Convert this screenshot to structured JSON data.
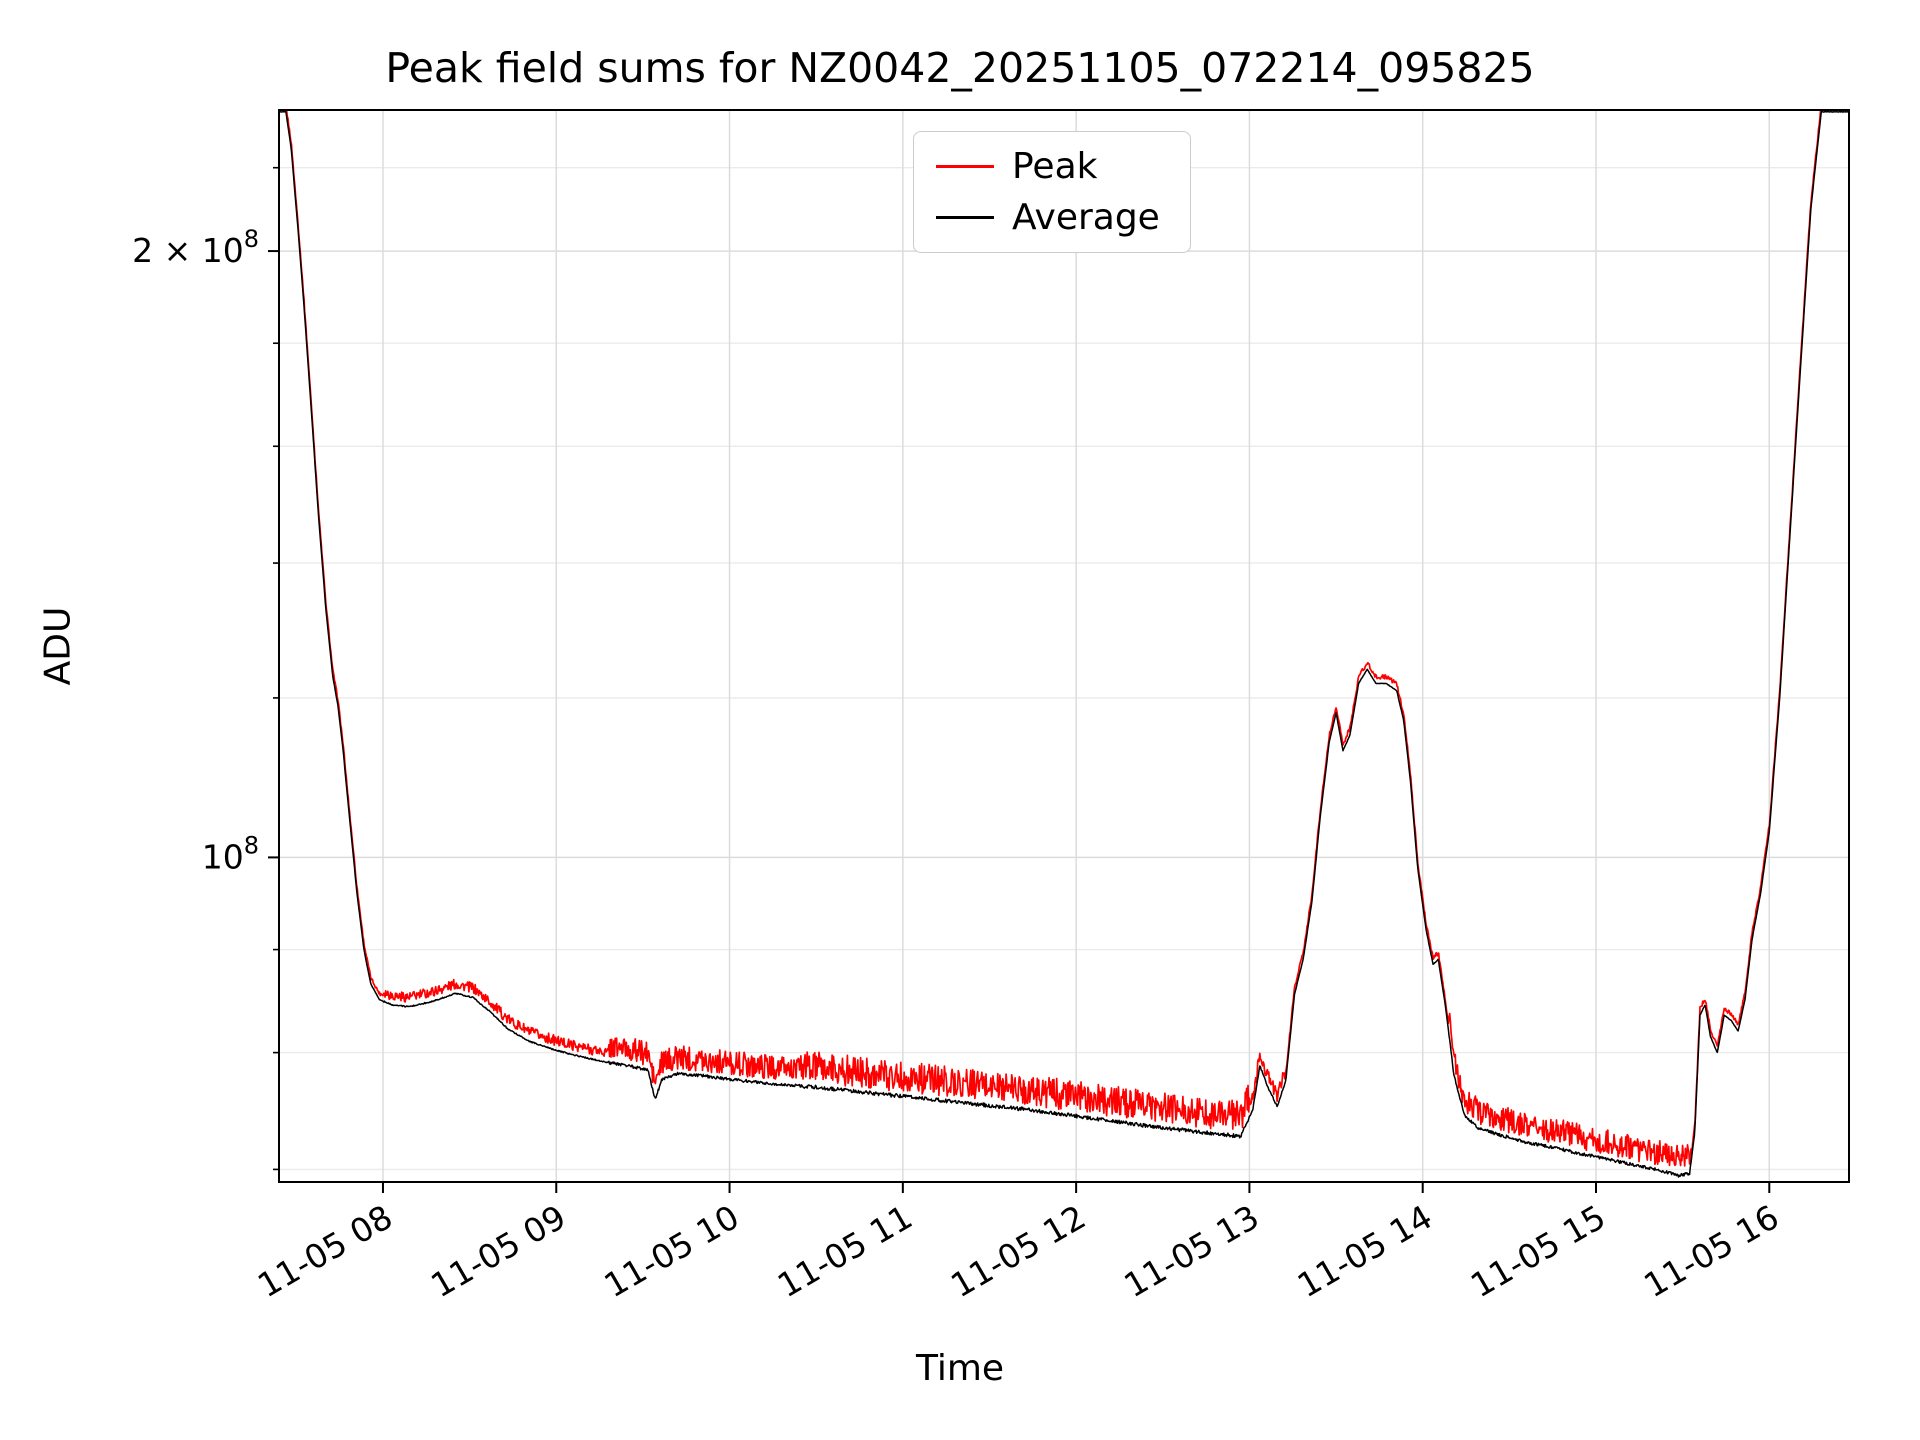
{
  "chart_data": {
    "type": "line",
    "title": "Peak field sums for NZ0042_20251105_072214_095825",
    "xlabel": "Time",
    "ylabel": "ADU",
    "y_scale": "log",
    "grid": true,
    "legend_position": "upper center-left",
    "ylim": [
      69000000.0,
      235000000.0
    ],
    "xlim_hours": [
      7.4,
      16.46
    ],
    "x_ticks": [
      {
        "hour": 8,
        "label": "11-05 08"
      },
      {
        "hour": 9,
        "label": "11-05 09"
      },
      {
        "hour": 10,
        "label": "11-05 10"
      },
      {
        "hour": 11,
        "label": "11-05 11"
      },
      {
        "hour": 12,
        "label": "11-05 12"
      },
      {
        "hour": 13,
        "label": "11-05 13"
      },
      {
        "hour": 14,
        "label": "11-05 14"
      },
      {
        "hour": 15,
        "label": "11-05 15"
      },
      {
        "hour": 16,
        "label": "11-05 16"
      }
    ],
    "y_major_ticks": [
      {
        "value": 100000000.0,
        "label": "10^8"
      },
      {
        "value": 200000000.0,
        "label": "2 × 10^8"
      }
    ],
    "y_minor_ticks": [
      70000000.0,
      80000000.0,
      90000000.0,
      120000000.0,
      140000000.0,
      160000000.0,
      180000000.0,
      220000000.0
    ],
    "legend": [
      {
        "label": "Peak",
        "color": "#ff0000"
      },
      {
        "label": "Average",
        "color": "#000000"
      }
    ],
    "series": {
      "average": {
        "name": "Average",
        "color": "#000000",
        "points": [
          [
            7.4,
            234500000.0
          ],
          [
            7.44,
            234500000.0
          ],
          [
            7.47,
            225000000.0
          ],
          [
            7.51,
            205000000.0
          ],
          [
            7.55,
            185000000.0
          ],
          [
            7.59,
            165000000.0
          ],
          [
            7.63,
            147000000.0
          ],
          [
            7.67,
            133000000.0
          ],
          [
            7.71,
            123000000.0
          ],
          [
            7.74,
            119000000.0
          ],
          [
            7.77,
            113000000.0
          ],
          [
            7.81,
            104000000.0
          ],
          [
            7.85,
            96000000.0
          ],
          [
            7.89,
            90000000.0
          ],
          [
            7.93,
            86500000.0
          ],
          [
            7.98,
            85000000.0
          ],
          [
            8.05,
            84500000.0
          ],
          [
            8.15,
            84300000.0
          ],
          [
            8.28,
            84800000.0
          ],
          [
            8.42,
            85600000.0
          ],
          [
            8.52,
            85200000.0
          ],
          [
            8.62,
            83800000.0
          ],
          [
            8.72,
            82200000.0
          ],
          [
            8.85,
            81000000.0
          ],
          [
            9.0,
            80200000.0
          ],
          [
            9.15,
            79600000.0
          ],
          [
            9.3,
            79100000.0
          ],
          [
            9.45,
            78700000.0
          ],
          [
            9.53,
            78400000.0
          ],
          [
            9.57,
            75800000.0
          ],
          [
            9.61,
            77600000.0
          ],
          [
            9.7,
            78100000.0
          ],
          [
            9.85,
            77900000.0
          ],
          [
            10.0,
            77600000.0
          ],
          [
            10.25,
            77200000.0
          ],
          [
            10.5,
            76900000.0
          ],
          [
            10.75,
            76500000.0
          ],
          [
            11.0,
            76100000.0
          ],
          [
            11.25,
            75700000.0
          ],
          [
            11.5,
            75300000.0
          ],
          [
            11.75,
            74900000.0
          ],
          [
            12.0,
            74400000.0
          ],
          [
            12.25,
            73900000.0
          ],
          [
            12.5,
            73400000.0
          ],
          [
            12.75,
            73000000.0
          ],
          [
            12.95,
            72700000.0
          ],
          [
            13.02,
            75000000.0
          ],
          [
            13.06,
            78800000.0
          ],
          [
            13.11,
            76800000.0
          ],
          [
            13.16,
            75200000.0
          ],
          [
            13.21,
            77500000.0
          ],
          [
            13.26,
            85500000.0
          ],
          [
            13.31,
            89000000.0
          ],
          [
            13.36,
            95000000.0
          ],
          [
            13.41,
            105000000.0
          ],
          [
            13.46,
            114000000.0
          ],
          [
            13.5,
            118000000.0
          ],
          [
            13.54,
            113000000.0
          ],
          [
            13.58,
            115000000.0
          ],
          [
            13.63,
            122000000.0
          ],
          [
            13.68,
            124000000.0
          ],
          [
            13.73,
            122000000.0
          ],
          [
            13.79,
            122000000.0
          ],
          [
            13.85,
            121000000.0
          ],
          [
            13.89,
            117000000.0
          ],
          [
            13.93,
            109000000.0
          ],
          [
            13.97,
            99000000.0
          ],
          [
            14.02,
            92000000.0
          ],
          [
            14.06,
            88500000.0
          ],
          [
            14.09,
            89000000.0
          ],
          [
            14.13,
            84500000.0
          ],
          [
            14.18,
            78000000.0
          ],
          [
            14.24,
            74500000.0
          ],
          [
            14.32,
            73400000.0
          ],
          [
            14.45,
            72800000.0
          ],
          [
            14.6,
            72200000.0
          ],
          [
            14.75,
            71800000.0
          ],
          [
            14.9,
            71300000.0
          ],
          [
            15.05,
            70900000.0
          ],
          [
            15.2,
            70400000.0
          ],
          [
            15.35,
            70000000.0
          ],
          [
            15.48,
            69500000.0
          ],
          [
            15.54,
            69700000.0
          ],
          [
            15.57,
            73000000.0
          ],
          [
            15.6,
            83500000.0
          ],
          [
            15.63,
            84500000.0
          ],
          [
            15.66,
            81500000.0
          ],
          [
            15.7,
            80000000.0
          ],
          [
            15.74,
            83500000.0
          ],
          [
            15.78,
            83000000.0
          ],
          [
            15.82,
            82000000.0
          ],
          [
            15.86,
            85000000.0
          ],
          [
            15.9,
            91000000.0
          ],
          [
            15.95,
            96000000.0
          ],
          [
            16.0,
            103000000.0
          ],
          [
            16.06,
            120000000.0
          ],
          [
            16.12,
            145000000.0
          ],
          [
            16.18,
            175000000.0
          ],
          [
            16.24,
            210000000.0
          ],
          [
            16.3,
            234500000.0
          ],
          [
            16.36,
            234500000.0
          ],
          [
            16.46,
            234500000.0
          ]
        ]
      },
      "peak": {
        "name": "Peak",
        "color": "#ff0000",
        "base": "average",
        "base_factor": 1.005,
        "noise_regions": [
          [
            7.4,
            8.0,
            0.004
          ],
          [
            8.0,
            9.3,
            0.012
          ],
          [
            9.3,
            10.4,
            0.028
          ],
          [
            10.4,
            13.0,
            0.036
          ],
          [
            13.0,
            13.2,
            0.015
          ],
          [
            13.2,
            14.15,
            0.005
          ],
          [
            14.15,
            15.55,
            0.03
          ],
          [
            15.55,
            16.46,
            0.005
          ]
        ]
      }
    }
  }
}
